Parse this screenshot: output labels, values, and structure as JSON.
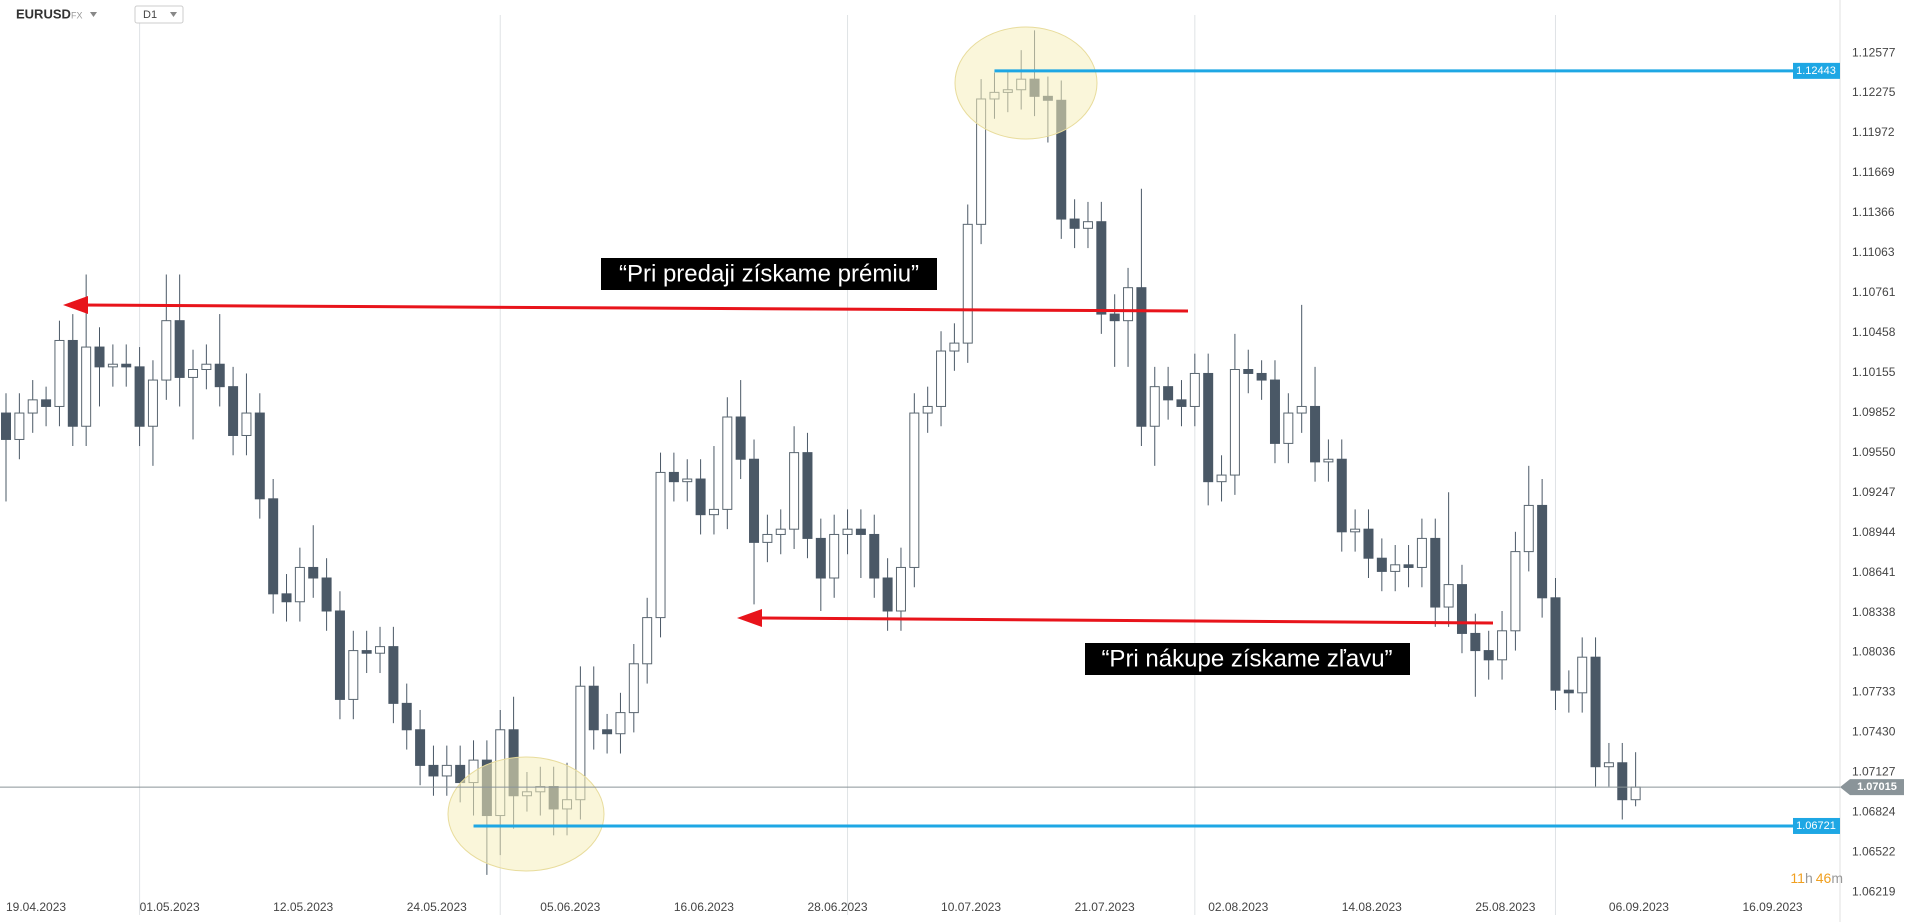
{
  "symbol": "EURUSD",
  "market": "FX",
  "timeframe": "D1",
  "countdown": {
    "hours": "11",
    "hours_unit": "h",
    "minutes": "46",
    "minutes_unit": "m"
  },
  "chart_data": {
    "type": "candlestick",
    "x": [
      0,
      1,
      2,
      3,
      4,
      5,
      6,
      7,
      8,
      9,
      10,
      11,
      12,
      13,
      14,
      15,
      16,
      17,
      18,
      19,
      20,
      21,
      22,
      23,
      24,
      25,
      26,
      27,
      28,
      29,
      30,
      31,
      32,
      33,
      34,
      35,
      36,
      37,
      38,
      39,
      40,
      41,
      42,
      43,
      44,
      45,
      46,
      47,
      48,
      49,
      50,
      51,
      52,
      53,
      54,
      55,
      56,
      57,
      58,
      59,
      60,
      61,
      62,
      63,
      64,
      65,
      66,
      67,
      68,
      69,
      70,
      71,
      72,
      73,
      74,
      75,
      76,
      77,
      78,
      79,
      80,
      81,
      82,
      83,
      84,
      85,
      86,
      87,
      88,
      89,
      90,
      91,
      92,
      93,
      94,
      95,
      96,
      97,
      98,
      99,
      100,
      101,
      102,
      103,
      104,
      105,
      106,
      107,
      108,
      109,
      110,
      111,
      112,
      113,
      114,
      115,
      116,
      117,
      118,
      119,
      120,
      121,
      122
    ],
    "open": [
      1.0985,
      1.0965,
      1.0985,
      1.0995,
      1.099,
      1.104,
      1.0975,
      1.1035,
      1.102,
      1.1022,
      1.102,
      1.0975,
      1.101,
      1.1055,
      1.1012,
      1.1018,
      1.1022,
      1.1005,
      1.0968,
      1.0985,
      1.092,
      1.0848,
      1.0842,
      1.0868,
      1.086,
      1.0835,
      1.0768,
      1.0805,
      1.0803,
      1.0808,
      1.0765,
      1.0745,
      1.0718,
      1.071,
      1.0718,
      1.0705,
      1.0722,
      1.068,
      1.0745,
      1.0695,
      1.0698,
      1.0702,
      1.0685,
      1.0692,
      1.0778,
      1.0745,
      1.0742,
      1.0758,
      1.0795,
      1.083,
      1.094,
      1.0933,
      1.0935,
      1.0908,
      1.0912,
      1.0982,
      1.095,
      1.0887,
      1.0893,
      1.0897,
      1.0955,
      1.089,
      1.086,
      1.0893,
      1.0897,
      1.0893,
      1.086,
      1.0835,
      1.0868,
      1.0985,
      1.099,
      1.1032,
      1.1038,
      1.1128,
      1.1223,
      1.1228,
      1.123,
      1.1238,
      1.1225,
      1.1222,
      1.1132,
      1.1125,
      1.113,
      1.106,
      1.1055,
      1.108,
      1.0975,
      1.1005,
      1.0995,
      1.099,
      1.1015,
      1.0933,
      1.0938,
      1.1018,
      1.1015,
      1.101,
      1.0962,
      1.0985,
      1.099,
      1.0948,
      1.095,
      1.0895,
      1.0897,
      1.0875,
      1.0865,
      1.087,
      1.0868,
      1.089,
      1.0838,
      1.0855,
      1.0818,
      1.0805,
      1.0798,
      1.082,
      1.088,
      1.0915,
      1.0845,
      1.0775,
      1.0773,
      1.08,
      1.0717,
      1.072,
      1.0692
    ],
    "high": [
      1.1,
      1.1,
      1.101,
      1.1005,
      1.1055,
      1.106,
      1.109,
      1.105,
      1.1037,
      1.1037,
      1.1035,
      1.1025,
      1.109,
      1.109,
      1.1033,
      1.1037,
      1.106,
      1.102,
      1.1015,
      1.1,
      1.0935,
      1.0863,
      1.0883,
      1.09,
      1.0875,
      1.085,
      1.082,
      1.082,
      1.0823,
      1.0823,
      1.078,
      1.076,
      1.0733,
      1.0733,
      1.0733,
      1.0737,
      1.0737,
      1.076,
      1.077,
      1.0713,
      1.0717,
      1.0717,
      1.072,
      1.0793,
      1.0793,
      1.0757,
      1.0773,
      1.081,
      1.0845,
      1.0955,
      1.0955,
      1.095,
      1.095,
      1.096,
      1.0997,
      1.101,
      1.0965,
      1.0908,
      1.0912,
      1.0975,
      1.097,
      1.0905,
      1.0908,
      1.0912,
      1.0912,
      1.0908,
      1.0875,
      1.0883,
      1.1,
      1.1005,
      1.1047,
      1.1053,
      1.1143,
      1.1238,
      1.1243,
      1.1245,
      1.126,
      1.1275,
      1.124,
      1.1237,
      1.1147,
      1.1145,
      1.1145,
      1.1075,
      1.1095,
      1.1155,
      1.102,
      1.102,
      1.101,
      1.103,
      1.103,
      1.0953,
      1.1045,
      1.1033,
      1.1025,
      1.1025,
      1.1,
      1.1067,
      1.102,
      1.0965,
      1.0965,
      1.0912,
      1.0912,
      1.089,
      1.0885,
      1.0885,
      1.0905,
      1.0905,
      1.0925,
      1.087,
      1.0833,
      1.082,
      1.0835,
      1.0895,
      1.0945,
      1.0935,
      1.086,
      1.079,
      1.0815,
      1.0815,
      1.0735,
      1.0735,
      1.0728
    ],
    "low": [
      1.0918,
      1.095,
      1.097,
      1.0975,
      1.0975,
      1.096,
      1.096,
      1.099,
      1.1005,
      1.1005,
      1.096,
      1.0945,
      1.0995,
      1.099,
      1.0965,
      1.1003,
      1.099,
      1.0953,
      1.0953,
      1.0905,
      1.0833,
      1.0827,
      1.0827,
      1.0845,
      1.082,
      1.0753,
      1.0753,
      1.0788,
      1.0788,
      1.075,
      1.073,
      1.0703,
      1.0695,
      1.0695,
      1.069,
      1.068,
      1.0635,
      1.065,
      1.067,
      1.0683,
      1.068,
      1.0665,
      1.0665,
      1.0677,
      1.073,
      1.0727,
      1.0727,
      1.0743,
      1.078,
      1.0815,
      1.0918,
      1.0918,
      1.0893,
      1.0893,
      1.0897,
      1.0935,
      1.084,
      1.0872,
      1.0878,
      1.0882,
      1.0875,
      1.0835,
      1.0845,
      1.0878,
      1.086,
      1.0845,
      1.082,
      1.082,
      1.0853,
      1.097,
      1.0975,
      1.1017,
      1.1023,
      1.1113,
      1.1208,
      1.1213,
      1.1215,
      1.121,
      1.119,
      1.1117,
      1.111,
      1.111,
      1.1045,
      1.102,
      1.102,
      1.096,
      1.0945,
      1.098,
      1.0975,
      1.0975,
      1.0915,
      1.0918,
      1.0923,
      1.1,
      1.0995,
      1.0947,
      1.0947,
      1.097,
      1.0933,
      1.0933,
      1.088,
      1.088,
      1.086,
      1.085,
      1.085,
      1.0853,
      1.0853,
      1.0823,
      1.0823,
      1.0803,
      1.077,
      1.0783,
      1.0783,
      1.0805,
      1.0865,
      1.083,
      1.076,
      1.0758,
      1.0758,
      1.0702,
      1.0702,
      1.0677,
      1.0687
    ],
    "close": [
      1.0965,
      1.0985,
      1.0995,
      1.099,
      1.104,
      1.0975,
      1.1035,
      1.102,
      1.1022,
      1.102,
      1.0975,
      1.101,
      1.1055,
      1.1012,
      1.1018,
      1.1022,
      1.1005,
      1.0968,
      1.0985,
      1.092,
      1.0848,
      1.0842,
      1.0868,
      1.086,
      1.0835,
      1.0768,
      1.0805,
      1.0803,
      1.0808,
      1.0765,
      1.0745,
      1.0718,
      1.071,
      1.0718,
      1.0705,
      1.0722,
      1.068,
      1.0745,
      1.0695,
      1.0698,
      1.0702,
      1.0685,
      1.0692,
      1.0778,
      1.0745,
      1.0742,
      1.0758,
      1.0795,
      1.083,
      1.094,
      1.0933,
      1.0935,
      1.0908,
      1.0912,
      1.0982,
      1.095,
      1.0887,
      1.0893,
      1.0897,
      1.0955,
      1.089,
      1.086,
      1.0893,
      1.0897,
      1.0893,
      1.086,
      1.0835,
      1.0868,
      1.0985,
      1.099,
      1.1032,
      1.1038,
      1.1128,
      1.1223,
      1.1228,
      1.123,
      1.1238,
      1.1225,
      1.1222,
      1.1132,
      1.1125,
      1.113,
      1.106,
      1.1055,
      1.108,
      1.0975,
      1.1005,
      1.0995,
      1.099,
      1.1015,
      1.0933,
      1.0938,
      1.1018,
      1.1015,
      1.101,
      1.0962,
      1.0985,
      1.099,
      1.0948,
      1.095,
      1.0895,
      1.0897,
      1.0875,
      1.0865,
      1.087,
      1.0868,
      1.089,
      1.0838,
      1.0855,
      1.0818,
      1.0805,
      1.0798,
      1.082,
      1.088,
      1.0915,
      1.0845,
      1.0775,
      1.0773,
      1.08,
      1.0717,
      1.072,
      1.0692,
      1.07015
    ],
    "up_color": "#ffffff",
    "down_color": "#4a5866",
    "xlim": [
      -0.45,
      137.3
    ],
    "xticks": [
      {
        "value": 0,
        "label": "19.04.2023"
      },
      {
        "value": 10,
        "label": "01.05.2023"
      },
      {
        "value": 20,
        "label": "12.05.2023"
      },
      {
        "value": 30,
        "label": "24.05.2023"
      },
      {
        "value": 40,
        "label": "05.06.2023"
      },
      {
        "value": 50,
        "label": "16.06.2023"
      },
      {
        "value": 60,
        "label": "28.06.2023"
      },
      {
        "value": 70,
        "label": "10.07.2023"
      },
      {
        "value": 80,
        "label": "21.07.2023"
      },
      {
        "value": 90,
        "label": "02.08.2023"
      },
      {
        "value": 100,
        "label": "14.08.2023"
      },
      {
        "value": 110,
        "label": "25.08.2023"
      },
      {
        "value": 120,
        "label": "06.09.2023"
      },
      {
        "value": 130,
        "label": "16.09.2023"
      }
    ],
    "xgrid": [
      10,
      37,
      63,
      89,
      116
    ],
    "ylim": [
      1.0616,
      1.1298
    ],
    "yticks": [
      1.06219,
      1.06522,
      1.06824,
      1.07127,
      {
        "value": 1.0743,
        "label": "1.07430"
      },
      1.07733,
      1.08036,
      1.08338,
      1.08641,
      1.08944,
      1.09247,
      {
        "value": 1.0955,
        "label": "1.09550"
      },
      1.09852,
      1.10155,
      1.10458,
      1.10761,
      1.11063,
      1.11366,
      1.11669,
      1.11972,
      1.12275,
      1.12577
    ],
    "lines": [
      {
        "value": 1.12443,
        "start": 74,
        "color": "#1ea7e4"
      },
      {
        "value": 1.06721,
        "start": 35,
        "color": "#1ea7e4"
      }
    ],
    "last_price": {
      "value": 1.07015,
      "color": "#8a9499"
    },
    "annotations": [
      {
        "text": "“Pri predaji získame prémiu”"
      },
      {
        "text": "“Pri nákupe získame zľavu”"
      }
    ]
  }
}
